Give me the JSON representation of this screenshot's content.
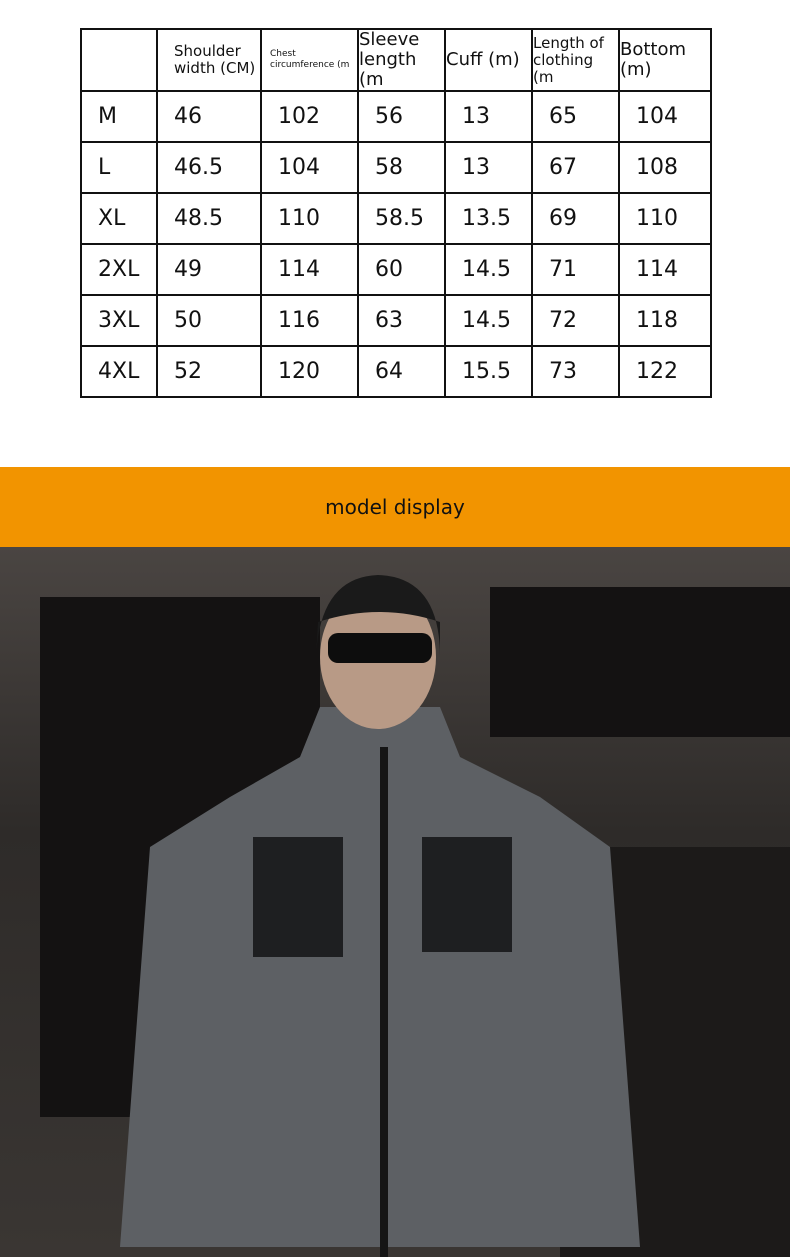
{
  "size_table": {
    "headers": [
      "",
      "Shoulder width (CM)",
      "Chest circumference (m",
      "Sleeve length (m",
      "Cuff (m)",
      "Length of clothing (m",
      "Bottom (m)"
    ],
    "rows": [
      [
        "M",
        "46",
        "102",
        "56",
        "13",
        "65",
        "104"
      ],
      [
        "L",
        "46.5",
        "104",
        "58",
        "13",
        "67",
        "108"
      ],
      [
        "XL",
        "48.5",
        "110",
        "58.5",
        "13.5",
        "69",
        "110"
      ],
      [
        "2XL",
        "49",
        "114",
        "60",
        "14.5",
        "71",
        "114"
      ],
      [
        "3XL",
        "50",
        "116",
        "63",
        "14.5",
        "72",
        "118"
      ],
      [
        "4XL",
        "52",
        "120",
        "64",
        "15.5",
        "73",
        "122"
      ]
    ]
  },
  "banner": {
    "title": "model display",
    "color": "#f29400"
  },
  "photo": {
    "subject": "model wearing grey softshell hooded jacket"
  }
}
